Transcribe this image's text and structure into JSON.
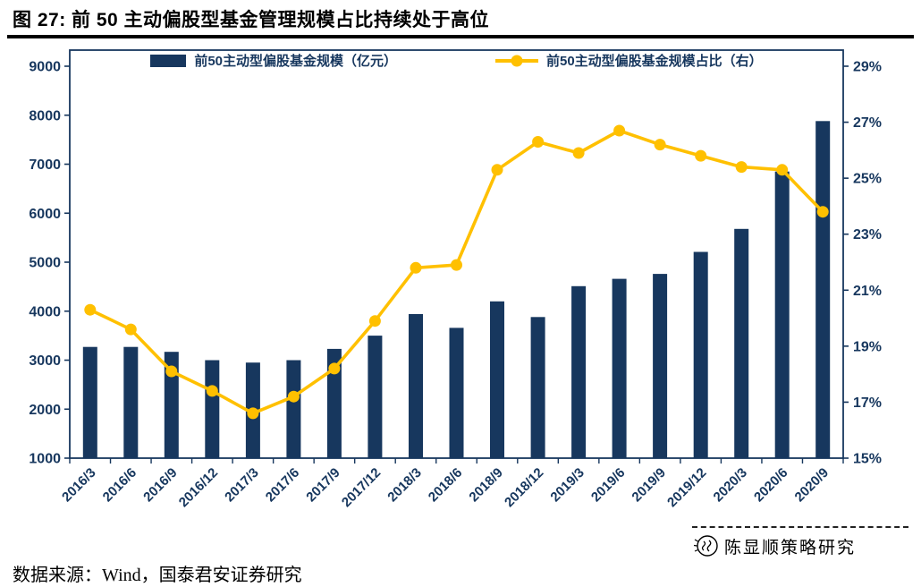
{
  "figure": {
    "title": "图 27: 前 50 主动偏股型基金管理规模占比持续处于高位",
    "source_note": "数据来源：Wind，国泰君安证券研究",
    "watermark": "陈显顺策略研究"
  },
  "chart_data": {
    "type": "bar+line",
    "categories": [
      "2016/3",
      "2016/6",
      "2016/9",
      "2016/12",
      "2017/3",
      "2017/6",
      "2017/9",
      "2017/12",
      "2018/3",
      "2018/6",
      "2018/9",
      "2018/12",
      "2019/3",
      "2019/6",
      "2019/9",
      "2019/12",
      "2020/3",
      "2020/6",
      "2020/9"
    ],
    "series": [
      {
        "name": "前50主动型偏股基金规模（亿元）",
        "type": "bar",
        "axis": "left",
        "color": "#17375E",
        "values": [
          3270,
          3270,
          3170,
          3000,
          2950,
          3000,
          3230,
          3500,
          3940,
          3660,
          4200,
          3880,
          4510,
          4660,
          4760,
          5210,
          5680,
          6850,
          7880
        ]
      },
      {
        "name": "前50主动型偏股基金规模占比（右）",
        "type": "line",
        "axis": "right",
        "color": "#FFC000",
        "values": [
          20.3,
          19.6,
          18.1,
          17.4,
          16.6,
          17.2,
          18.2,
          19.9,
          21.8,
          21.9,
          25.3,
          26.3,
          25.9,
          26.7,
          26.2,
          25.8,
          25.4,
          25.3,
          23.8
        ]
      }
    ],
    "left_axis": {
      "min": 1000,
      "max": 9000,
      "step": 1000
    },
    "right_axis": {
      "min": 15,
      "max": 29,
      "step": 2,
      "suffix": "%"
    },
    "axis_color": "#17375E",
    "grid": false,
    "legend_position": "top"
  }
}
